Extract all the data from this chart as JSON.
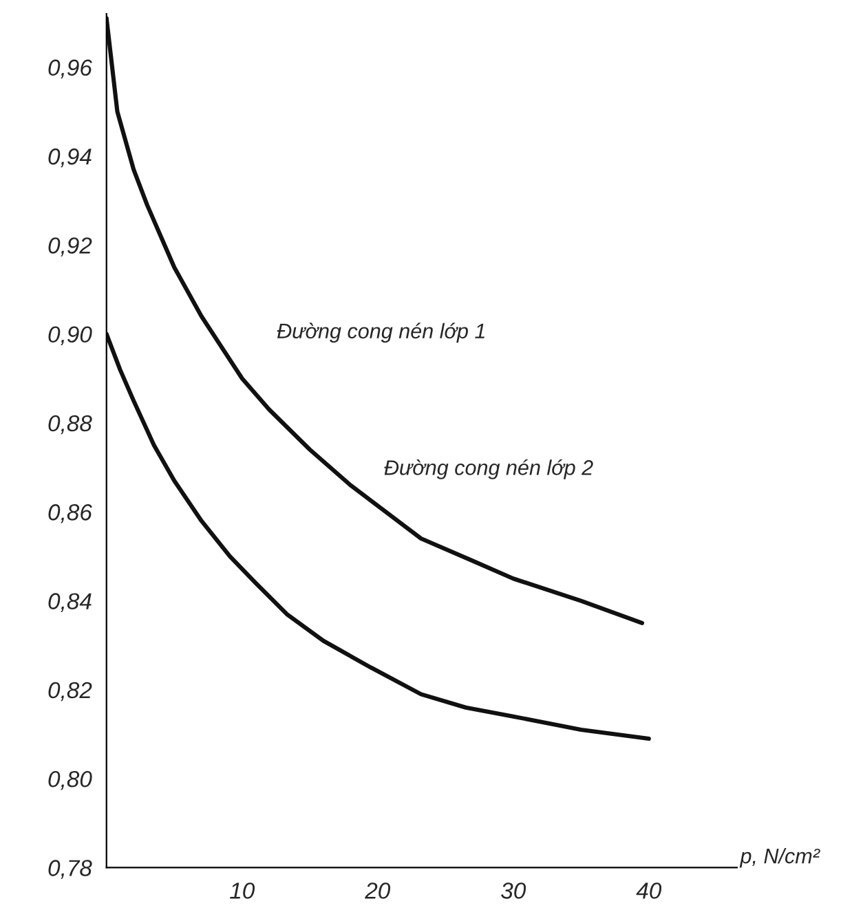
{
  "chart_data": {
    "type": "line",
    "xlabel": "p, N/cm²",
    "xlim": [
      0,
      46.5
    ],
    "ylim": [
      0.78,
      0.972
    ],
    "xticks": [
      10,
      20,
      30,
      40
    ],
    "yticks": [
      {
        "value": 0.78,
        "label": "0,78"
      },
      {
        "value": 0.8,
        "label": "0,80"
      },
      {
        "value": 0.82,
        "label": "0,82"
      },
      {
        "value": 0.84,
        "label": "0,84"
      },
      {
        "value": 0.86,
        "label": "0,86"
      },
      {
        "value": 0.88,
        "label": "0,88"
      },
      {
        "value": 0.9,
        "label": "0,90"
      },
      {
        "value": 0.92,
        "label": "0,92"
      },
      {
        "value": 0.94,
        "label": "0,94"
      },
      {
        "value": 0.96,
        "label": "0,96"
      }
    ],
    "grid": false,
    "legend": false,
    "marker": "none",
    "line_style": "solid",
    "series": [
      {
        "color": "#111111",
        "x": [
          0,
          0.8,
          2,
          3,
          5,
          7,
          10,
          12,
          15,
          18,
          23.2,
          27,
          30,
          35,
          39.5
        ],
        "values": [
          0.971,
          0.95,
          0.937,
          0.929,
          0.915,
          0.904,
          0.89,
          0.883,
          0.874,
          0.866,
          0.854,
          0.849,
          0.845,
          0.84,
          0.835
        ]
      },
      {
        "color": "#111111",
        "x": [
          0,
          1,
          2,
          3.5,
          5,
          7,
          9.1,
          11,
          13.3,
          16,
          19.5,
          23.2,
          26.5,
          30,
          35,
          40
        ],
        "values": [
          0.9,
          0.892,
          0.885,
          0.875,
          0.867,
          0.858,
          0.85,
          0.844,
          0.837,
          0.831,
          0.825,
          0.819,
          0.816,
          0.814,
          0.811,
          0.809
        ]
      }
    ],
    "annotations": [
      "Đường cong nén lớp 1",
      "Đường cong nén lớp 2"
    ]
  }
}
